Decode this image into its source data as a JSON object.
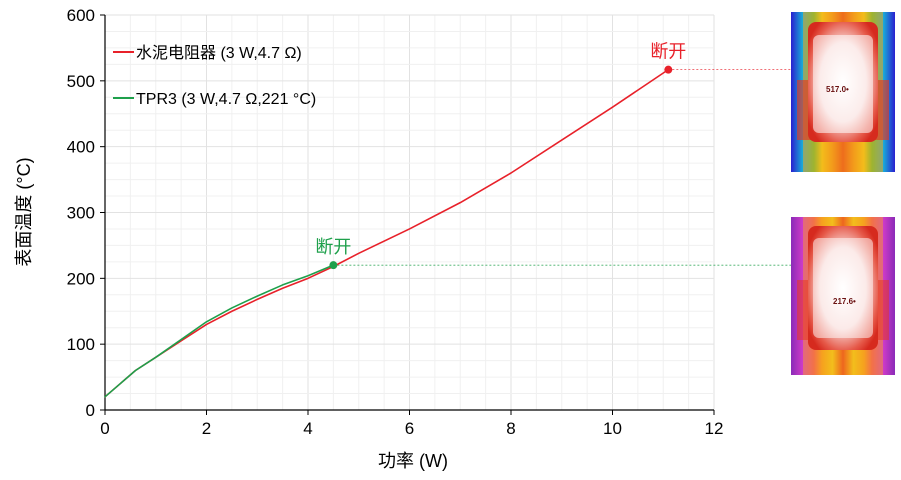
{
  "chart_data": {
    "type": "line",
    "xlabel": "功率 (W)",
    "ylabel": "表面温度 (°C)",
    "xlim": [
      0,
      12
    ],
    "ylim": [
      0,
      600
    ],
    "x_ticks": [
      "0",
      "2",
      "4",
      "6",
      "8",
      "10",
      "12"
    ],
    "y_ticks": [
      "0",
      "100",
      "200",
      "300",
      "400",
      "500",
      "600"
    ],
    "grid": true,
    "legend_position": "top-left",
    "series": [
      {
        "name": "水泥电阻器 (3 W,4.7 Ω)",
        "color": "#e8212a",
        "x": [
          0,
          0.3,
          0.6,
          1.0,
          1.5,
          2.0,
          2.5,
          3.0,
          3.5,
          4.0,
          4.5,
          5.0,
          6.0,
          7.0,
          8.0,
          9.0,
          10.0,
          11.1
        ],
        "y": [
          20,
          40,
          60,
          80,
          105,
          130,
          150,
          168,
          185,
          200,
          218,
          238,
          275,
          315,
          360,
          410,
          460,
          517
        ],
        "end_marker": true,
        "end_label": "断开"
      },
      {
        "name": "TPR3 (3 W,4.7 Ω,221 °C)",
        "color": "#1ea04b",
        "x": [
          0,
          0.3,
          0.6,
          1.0,
          1.5,
          2.0,
          2.5,
          3.0,
          3.5,
          4.0,
          4.5
        ],
        "y": [
          20,
          40,
          60,
          80,
          107,
          134,
          155,
          173,
          190,
          204,
          220
        ],
        "end_marker": true,
        "end_label": "断开"
      }
    ],
    "thermal_images": [
      {
        "value_text": "517.0•",
        "palette": "hot"
      },
      {
        "value_text": "217.6•",
        "palette": "magenta"
      }
    ]
  }
}
